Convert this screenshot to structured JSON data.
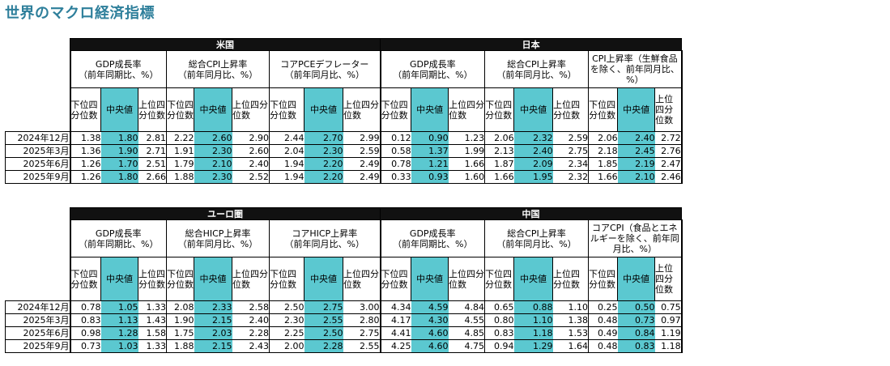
{
  "page_title": "世界のマクロ経済指標",
  "colors": {
    "title": "#2E7F9B",
    "median_fill": "#5BC8D0",
    "header_band": "#111111"
  },
  "quantile_labels": {
    "lower": "下位四分位数",
    "median": "中央値",
    "upper": "上位四分位数"
  },
  "rows": [
    "2024年12月",
    "2025年3月",
    "2025年6月",
    "2025年9月"
  ],
  "blocks": [
    {
      "regions": [
        {
          "name": "米国",
          "metrics": [
            {
              "name": "GDP成長率",
              "unit": "（前年同期比、%）",
              "values": [
                [
                  "1.38",
                  "1.80",
                  "2.81"
                ],
                [
                  "1.36",
                  "1.90",
                  "2.71"
                ],
                [
                  "1.26",
                  "1.70",
                  "2.51"
                ],
                [
                  "1.26",
                  "1.80",
                  "2.66"
                ]
              ]
            },
            {
              "name": "総合CPI上昇率",
              "unit": "（前年同月比、%）",
              "values": [
                [
                  "2.22",
                  "2.60",
                  "2.90"
                ],
                [
                  "1.91",
                  "2.30",
                  "2.60"
                ],
                [
                  "1.79",
                  "2.10",
                  "2.40"
                ],
                [
                  "1.88",
                  "2.30",
                  "2.52"
                ]
              ]
            },
            {
              "name": "コアPCEデフレーター",
              "unit": "（前年同月比、%）",
              "values": [
                [
                  "2.44",
                  "2.70",
                  "2.99"
                ],
                [
                  "2.04",
                  "2.30",
                  "2.59"
                ],
                [
                  "1.94",
                  "2.20",
                  "2.49"
                ],
                [
                  "1.94",
                  "2.20",
                  "2.49"
                ]
              ]
            }
          ]
        },
        {
          "name": "日本",
          "metrics": [
            {
              "name": "GDP成長率",
              "unit": "（前年同期比、%）",
              "values": [
                [
                  "0.12",
                  "0.90",
                  "1.23"
                ],
                [
                  "0.58",
                  "1.37",
                  "1.99"
                ],
                [
                  "0.78",
                  "1.21",
                  "1.66"
                ],
                [
                  "0.33",
                  "0.93",
                  "1.60"
                ]
              ]
            },
            {
              "name": "総合CPI上昇率",
              "unit": "（前年同月比、%）",
              "values": [
                [
                  "2.06",
                  "2.32",
                  "2.59"
                ],
                [
                  "2.13",
                  "2.40",
                  "2.75"
                ],
                [
                  "1.87",
                  "2.09",
                  "2.34"
                ],
                [
                  "1.66",
                  "1.95",
                  "2.32"
                ]
              ]
            },
            {
              "name": "CPI上昇率（生鮮食品を除く、前年同月比、%）",
              "unit": "",
              "values": [
                [
                  "2.06",
                  "2.40",
                  "2.72"
                ],
                [
                  "2.18",
                  "2.45",
                  "2.76"
                ],
                [
                  "1.85",
                  "2.19",
                  "2.47"
                ],
                [
                  "1.66",
                  "2.10",
                  "2.46"
                ]
              ]
            }
          ]
        }
      ]
    },
    {
      "regions": [
        {
          "name": "ユーロ圏",
          "metrics": [
            {
              "name": "GDP成長率",
              "unit": "（前年同期比、%）",
              "values": [
                [
                  "0.78",
                  "1.05",
                  "1.33"
                ],
                [
                  "0.83",
                  "1.13",
                  "1.43"
                ],
                [
                  "0.98",
                  "1.28",
                  "1.58"
                ],
                [
                  "0.73",
                  "1.03",
                  "1.33"
                ]
              ]
            },
            {
              "name": "総合HICP上昇率",
              "unit": "（前年同月比、%）",
              "values": [
                [
                  "2.08",
                  "2.33",
                  "2.58"
                ],
                [
                  "1.90",
                  "2.15",
                  "2.40"
                ],
                [
                  "1.75",
                  "2.03",
                  "2.28"
                ],
                [
                  "1.88",
                  "2.15",
                  "2.43"
                ]
              ]
            },
            {
              "name": "コアHICP上昇率",
              "unit": "（前年同月比、%）",
              "values": [
                [
                  "2.50",
                  "2.75",
                  "3.00"
                ],
                [
                  "2.30",
                  "2.55",
                  "2.80"
                ],
                [
                  "2.25",
                  "2.50",
                  "2.75"
                ],
                [
                  "2.00",
                  "2.28",
                  "2.55"
                ]
              ]
            }
          ]
        },
        {
          "name": "中国",
          "metrics": [
            {
              "name": "GDP成長率",
              "unit": "（前年同期比、%）",
              "values": [
                [
                  "4.34",
                  "4.59",
                  "4.84"
                ],
                [
                  "4.17",
                  "4.30",
                  "4.55"
                ],
                [
                  "4.41",
                  "4.60",
                  "4.85"
                ],
                [
                  "4.25",
                  "4.60",
                  "4.75"
                ]
              ]
            },
            {
              "name": "総合CPI上昇率",
              "unit": "（前年同月比、%）",
              "values": [
                [
                  "0.65",
                  "0.88",
                  "1.10"
                ],
                [
                  "0.80",
                  "1.10",
                  "1.38"
                ],
                [
                  "0.83",
                  "1.18",
                  "1.53"
                ],
                [
                  "0.94",
                  "1.29",
                  "1.64"
                ]
              ]
            },
            {
              "name": "コアCPI（食品とエネルギーを除く、前年同月比、%）",
              "unit": "",
              "values": [
                [
                  "0.25",
                  "0.50",
                  "0.75"
                ],
                [
                  "0.48",
                  "0.73",
                  "0.97"
                ],
                [
                  "0.49",
                  "0.84",
                  "1.19"
                ],
                [
                  "0.48",
                  "0.83",
                  "1.18"
                ]
              ]
            }
          ]
        }
      ]
    }
  ]
}
